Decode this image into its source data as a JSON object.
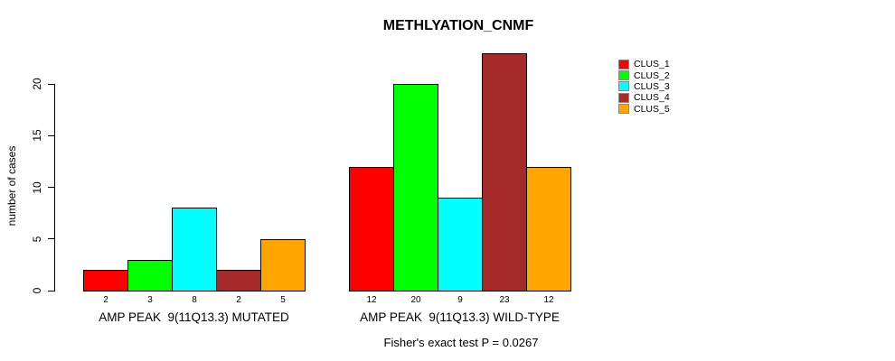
{
  "chart_data": {
    "type": "bar",
    "title": "METHLYATION_CNMF",
    "ylabel": "number of cases",
    "xlabel": "",
    "ylim": [
      0,
      23.5
    ],
    "yticks": [
      0,
      5,
      10,
      15,
      20
    ],
    "grid": false,
    "legend_position": "right-outside",
    "series": [
      "CLUS_1",
      "CLUS_2",
      "CLUS_3",
      "CLUS_4",
      "CLUS_5"
    ],
    "series_colors": [
      "#ff0000",
      "#00ff00",
      "#00ffff",
      "#a52a2a",
      "#ffa500"
    ],
    "groups": [
      {
        "label": "AMP PEAK  9(11Q13.3) MUTATED",
        "values": [
          2,
          3,
          8,
          2,
          5
        ]
      },
      {
        "label": "AMP PEAK  9(11Q13.3) WILD-TYPE",
        "values": [
          12,
          20,
          9,
          23,
          12
        ]
      }
    ],
    "bar_value_labels_visible": true,
    "legend": [
      {
        "label": "CLUS_1",
        "color": "#ff0000"
      },
      {
        "label": "CLUS_2",
        "color": "#00ff00"
      },
      {
        "label": "CLUS_3",
        "color": "#00ffff"
      },
      {
        "label": "CLUS_4",
        "color": "#a52a2a"
      },
      {
        "label": "CLUS_5",
        "color": "#ffa500"
      }
    ],
    "annotation": "Fisher's exact test P = 0.0267"
  }
}
